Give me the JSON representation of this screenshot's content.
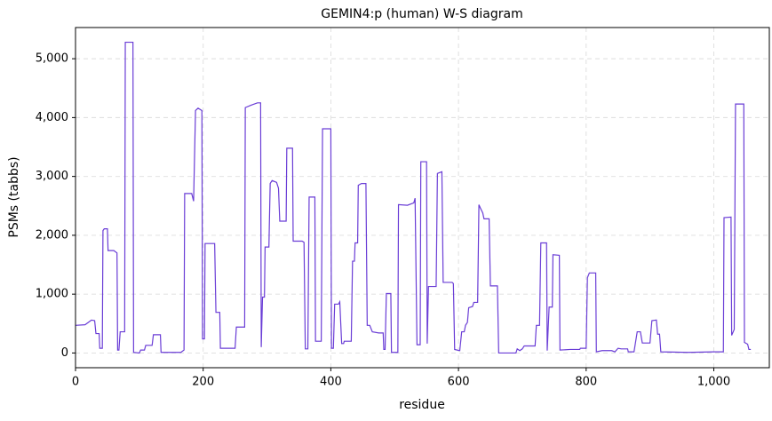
{
  "chart_data": {
    "type": "line",
    "title": "GEMIN4:p (human) W-S diagram",
    "xlabel": "residue",
    "ylabel": "PSMs (tabbs)",
    "xlim": [
      0,
      1087
    ],
    "ylim": [
      -250,
      5530
    ],
    "xticks": [
      0,
      200,
      400,
      600,
      800,
      {
        "value": 1000,
        "label": "1,000"
      }
    ],
    "yticks": [
      0,
      {
        "value": 1000,
        "label": "1,000"
      },
      {
        "value": 2000,
        "label": "2,000"
      },
      {
        "value": 3000,
        "label": "3,000"
      },
      {
        "value": 4000,
        "label": "4,000"
      },
      {
        "value": 5000,
        "label": "5,000"
      }
    ],
    "grid": true,
    "series": [
      {
        "color": "#6a3dd6",
        "x": [
          0,
          15,
          20,
          25,
          30,
          32,
          37,
          38,
          42,
          43,
          45,
          50,
          51,
          60,
          65,
          66,
          68,
          70,
          77,
          78,
          90,
          91,
          100,
          102,
          108,
          110,
          120,
          122,
          133,
          134,
          165,
          170,
          171,
          182,
          185,
          188,
          192,
          198,
          199,
          202,
          203,
          218,
          220,
          226,
          227,
          232,
          250,
          252,
          265,
          266,
          275,
          285,
          290,
          291,
          293,
          296,
          297,
          303,
          305,
          308,
          315,
          318,
          320,
          330,
          331,
          340,
          341,
          355,
          358,
          360,
          364,
          366,
          375,
          376,
          385,
          387,
          400,
          401,
          404,
          406,
          412,
          414,
          417,
          420,
          421,
          432,
          434,
          437,
          438,
          442,
          443,
          448,
          455,
          457,
          461,
          465,
          475,
          482,
          483,
          485,
          487,
          494,
          495,
          505,
          506,
          520,
          530,
          532,
          535,
          540,
          541,
          550,
          551,
          553,
          565,
          567,
          574,
          576,
          590,
          592,
          594,
          602,
          605,
          609,
          611,
          614,
          616,
          622,
          624,
          630,
          632,
          634,
          638,
          640,
          648,
          650,
          661,
          663,
          690,
          692,
          696,
          700,
          703,
          720,
          722,
          727,
          729,
          738,
          739,
          742,
          747,
          748,
          758,
          759,
          775,
          790,
          791,
          800,
          802,
          805,
          815,
          816,
          825,
          840,
          845,
          850,
          855,
          865,
          866,
          875,
          880,
          885,
          888,
          900,
          903,
          910,
          912,
          915,
          917,
          960,
          1000,
          1015,
          1016,
          1027,
          1028,
          1032,
          1034,
          1047,
          1048,
          1053,
          1055,
          1058
        ],
        "values": [
          470,
          480,
          520,
          560,
          550,
          330,
          330,
          80,
          80,
          2080,
          2110,
          2110,
          1740,
          1740,
          1700,
          50,
          50,
          360,
          360,
          5280,
          5280,
          10,
          0,
          50,
          50,
          130,
          130,
          310,
          310,
          10,
          10,
          50,
          2710,
          2710,
          2580,
          4120,
          4160,
          4120,
          240,
          240,
          1860,
          1860,
          690,
          690,
          80,
          80,
          80,
          440,
          440,
          4170,
          4210,
          4250,
          4250,
          100,
          950,
          950,
          1800,
          1800,
          2880,
          2930,
          2900,
          2800,
          2240,
          2240,
          3480,
          3480,
          1900,
          1900,
          1880,
          70,
          70,
          2650,
          2650,
          200,
          200,
          3810,
          3810,
          80,
          80,
          830,
          830,
          870,
          160,
          160,
          200,
          200,
          1560,
          1560,
          1870,
          1870,
          2850,
          2880,
          2880,
          470,
          470,
          360,
          340,
          340,
          60,
          60,
          1010,
          1010,
          10,
          10,
          2520,
          2510,
          2550,
          2630,
          140,
          140,
          3250,
          3250,
          160,
          1130,
          1130,
          3050,
          3080,
          1200,
          1200,
          1180,
          60,
          40,
          360,
          360,
          470,
          520,
          770,
          790,
          860,
          860,
          2520,
          2470,
          2380,
          2280,
          2280,
          1140,
          1140,
          0,
          0,
          70,
          40,
          70,
          120,
          120,
          470,
          470,
          1870,
          1870,
          40,
          780,
          780,
          1670,
          1660,
          50,
          60,
          60,
          80,
          80,
          1280,
          1360,
          1360,
          20,
          40,
          40,
          20,
          80,
          70,
          70,
          20,
          20,
          360,
          360,
          170,
          170,
          550,
          560,
          320,
          320,
          20,
          10,
          20,
          20,
          2300,
          2310,
          300,
          400,
          4230,
          4230,
          180,
          150,
          60,
          60
        ]
      }
    ]
  }
}
